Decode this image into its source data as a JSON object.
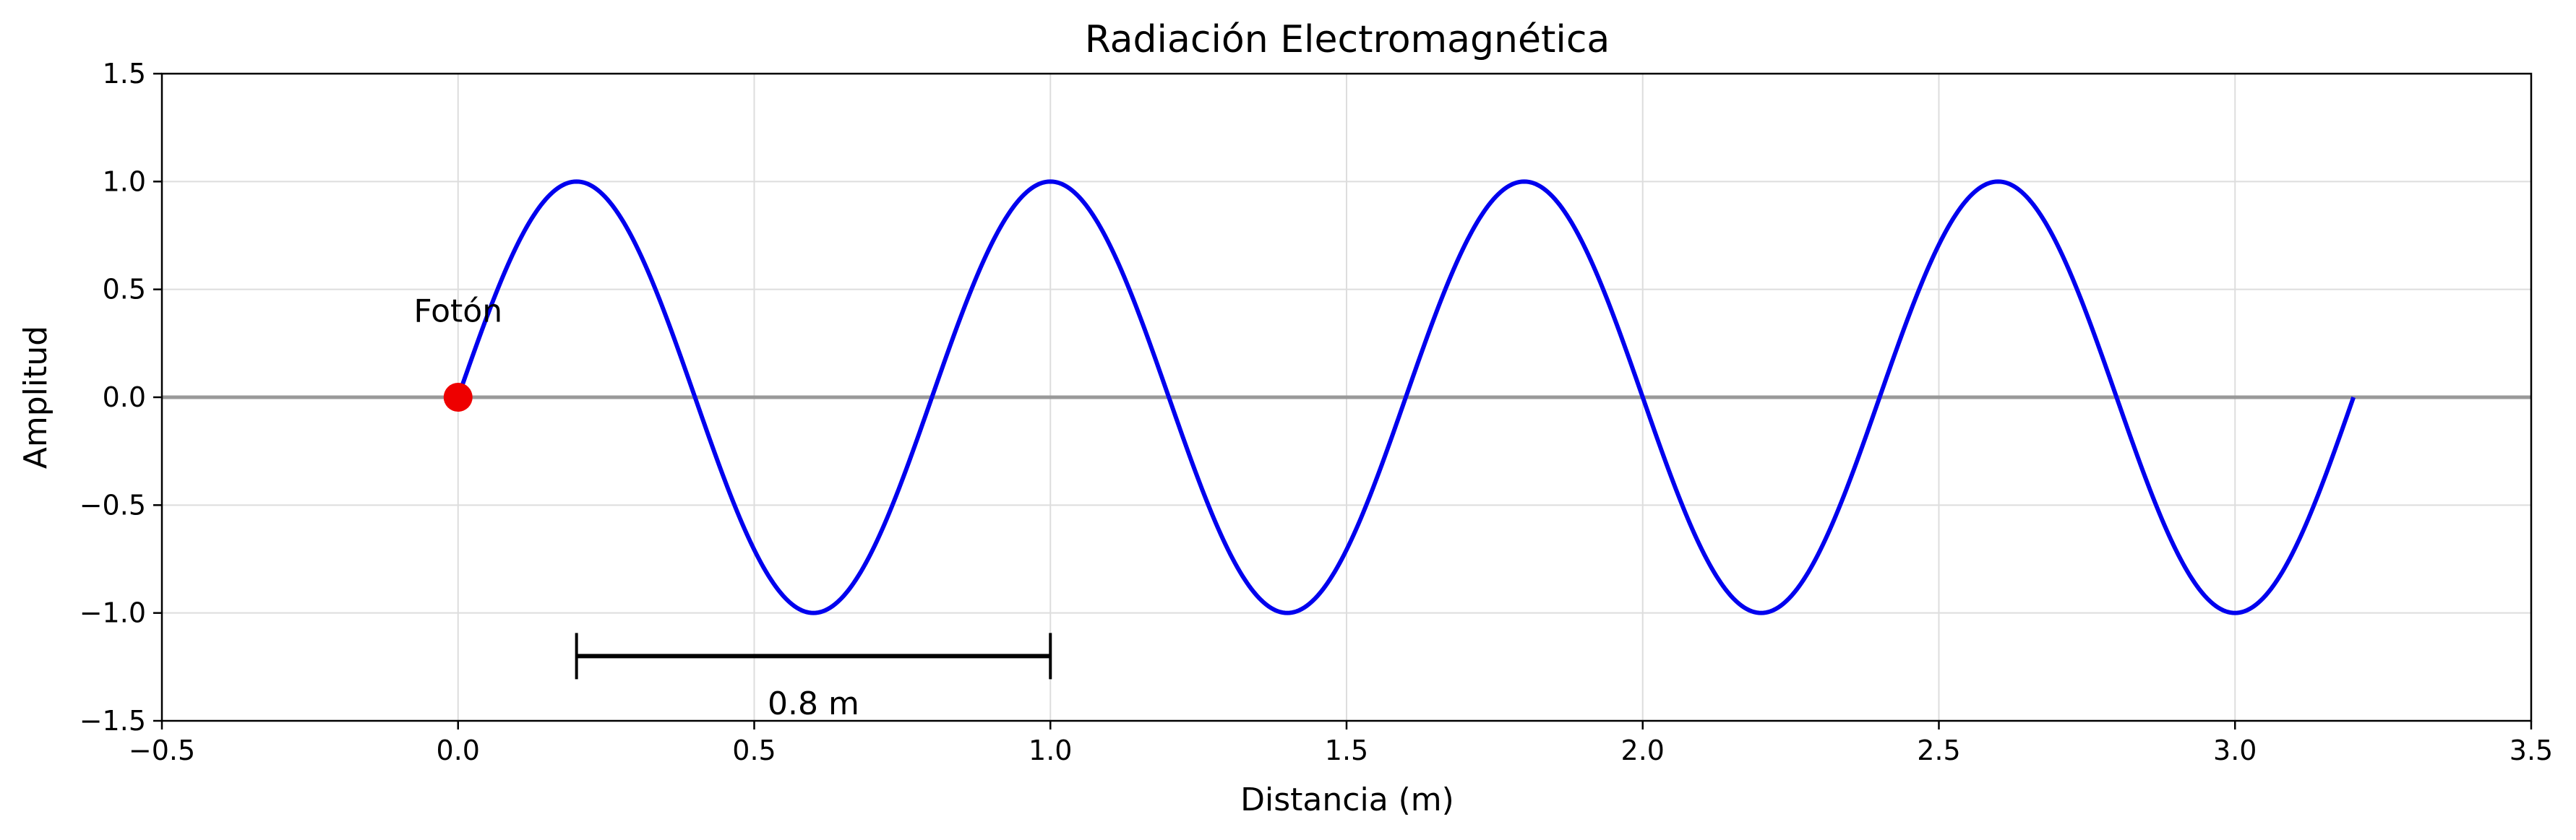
{
  "chart_data": {
    "type": "line",
    "title": "Radiación Electromagnética",
    "xlabel": "Distancia (m)",
    "ylabel": "Amplitud",
    "xlim": [
      -0.5,
      3.5
    ],
    "ylim": [
      -1.5,
      1.5
    ],
    "xticks": [
      -0.5,
      0.0,
      0.5,
      1.0,
      1.5,
      2.0,
      2.5,
      3.0,
      3.5
    ],
    "xtick_labels": [
      "−0.5",
      "0.0",
      "0.5",
      "1.0",
      "1.5",
      "2.0",
      "2.5",
      "3.0",
      "3.5"
    ],
    "yticks": [
      -1.5,
      -1.0,
      -0.5,
      0.0,
      0.5,
      1.0,
      1.5
    ],
    "ytick_labels": [
      "−1.5",
      "−1.0",
      "−0.5",
      "0.0",
      "0.5",
      "1.0",
      "1.5"
    ],
    "grid": true,
    "series": [
      {
        "type": "sine",
        "x_range": [
          0.0,
          3.2
        ],
        "amplitude": 1.0,
        "wavelength": 0.8,
        "color": "#0000ee"
      }
    ],
    "baseline": {
      "y": 0.0,
      "color": "#999999"
    },
    "photon": {
      "x": 0.0,
      "y": 0.0,
      "color": "#ee0000",
      "label": "Fotón",
      "label_x": 0.0,
      "label_y": 0.35
    },
    "wavelength_marker": {
      "x_start": 0.2,
      "x_end": 1.0,
      "y": -1.2,
      "label": "0.8 m",
      "label_x": 0.6,
      "label_y": -1.47
    }
  }
}
